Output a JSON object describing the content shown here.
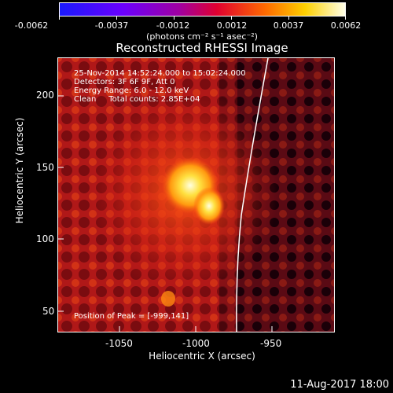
{
  "colorbar": {
    "ticks": [
      "-0.0062",
      "-0.0037",
      "-0.0012",
      "0.0012",
      "0.0037",
      "0.0062"
    ],
    "units": "(photons cm⁻² s⁻¹ asec⁻²)"
  },
  "title": "Reconstructed RHESSI Image",
  "info": {
    "time_range": "25-Nov-2014 14:52:24.000 to 15:02:24.000",
    "detectors": "Detectors: 3F 6F 9F, Att 0",
    "energy": "Energy Range: 6.0 - 12.0 keV",
    "clean": "Clean     Total counts: 2.85E+04",
    "peak": "Position of Peak = [-999,141]"
  },
  "axes": {
    "xlabel": "Heliocentric X (arcsec)",
    "ylabel": "Heliocentric Y (arcsec)",
    "x_ticks": [
      "-1050",
      "-1000",
      "-950"
    ],
    "y_ticks": [
      "200",
      "150",
      "100",
      "50"
    ]
  },
  "timestamp": "11-Aug-2017 18:00",
  "colors": {
    "background": "#000000",
    "foreground": "#ffffff"
  }
}
